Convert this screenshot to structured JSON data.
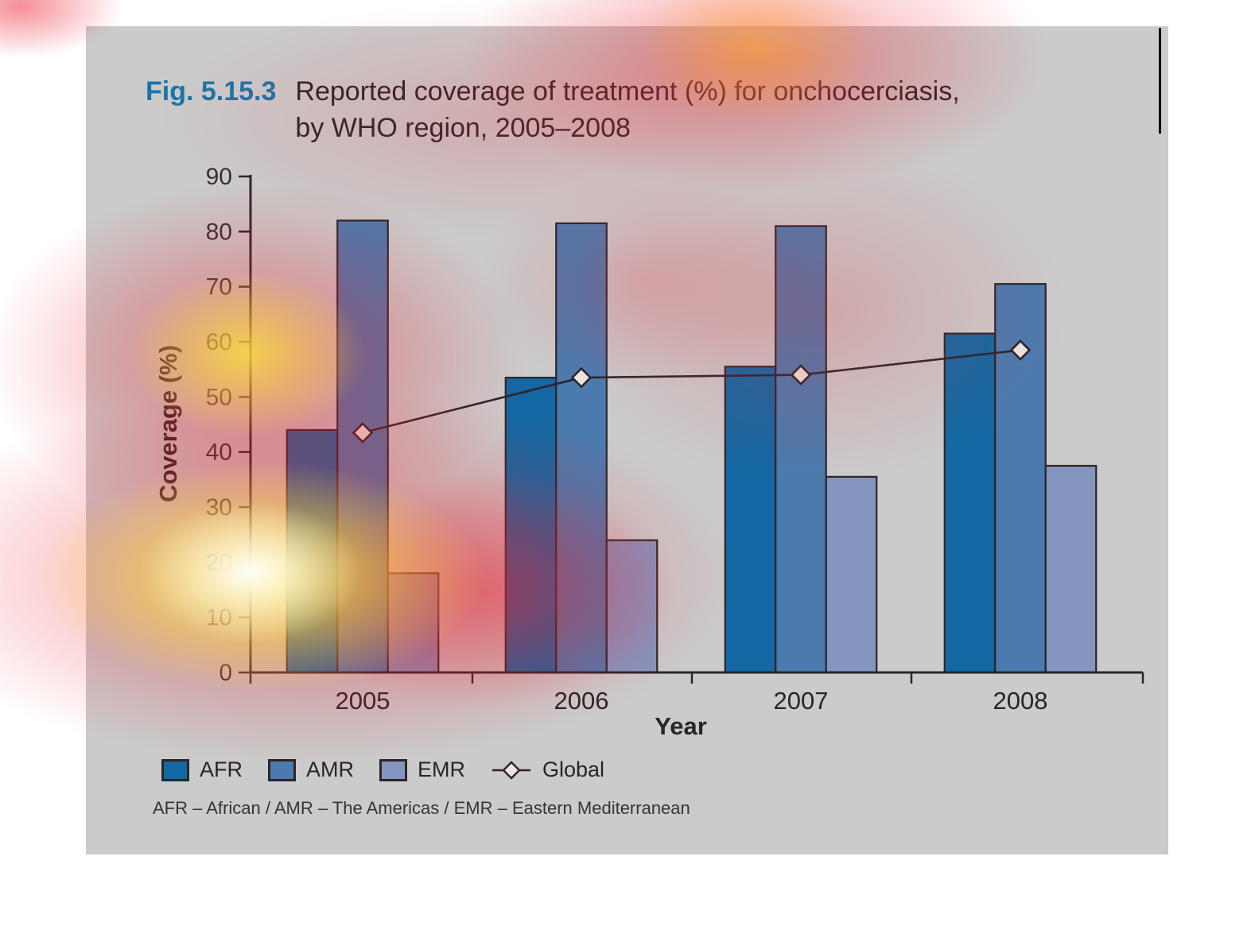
{
  "page": {
    "background": "#ffffff",
    "panel_color": "#cbcbcb"
  },
  "figure": {
    "label": "Fig. 5.15.3",
    "label_color": "#1B74A9",
    "title_line1": "Reported coverage of treatment (%) for onchocerciasis,",
    "title_line2": "by WHO region, 2005–2008"
  },
  "chart_data": {
    "type": "bar",
    "subtype": "grouped-bars-with-line-overlay",
    "categories": [
      "2005",
      "2006",
      "2007",
      "2008"
    ],
    "series": [
      {
        "name": "AFR",
        "type": "bar",
        "color": "#1368A3",
        "values": [
          44,
          53.5,
          55.5,
          61.5
        ]
      },
      {
        "name": "AMR",
        "type": "bar",
        "color": "#4B7BAE",
        "values": [
          82,
          81.5,
          81,
          70.5
        ]
      },
      {
        "name": "EMR",
        "type": "bar",
        "color": "#8496BF",
        "values": [
          18,
          24,
          35.5,
          37.5
        ]
      },
      {
        "name": "Global",
        "type": "line",
        "color": "#2C2428",
        "marker": "diamond",
        "marker_fill": "#EBE6E0",
        "values": [
          43.5,
          53.5,
          54,
          58.5
        ]
      }
    ],
    "xlabel": "Year",
    "ylabel": "Coverage (%)",
    "ylim": [
      0,
      90
    ],
    "yticks": [
      0,
      10,
      20,
      30,
      40,
      50,
      60,
      70,
      80,
      90
    ],
    "grid": false,
    "legend_position": "bottom-left",
    "axis_color": "#2C2428"
  },
  "footnote": "AFR – African / AMR – The Americas / EMR – Eastern Mediterranean",
  "overlay": {
    "description": "attention heatmap blobs",
    "hot_colors": [
      "#ffffff",
      "#fff33b",
      "#ec1e2d"
    ]
  }
}
